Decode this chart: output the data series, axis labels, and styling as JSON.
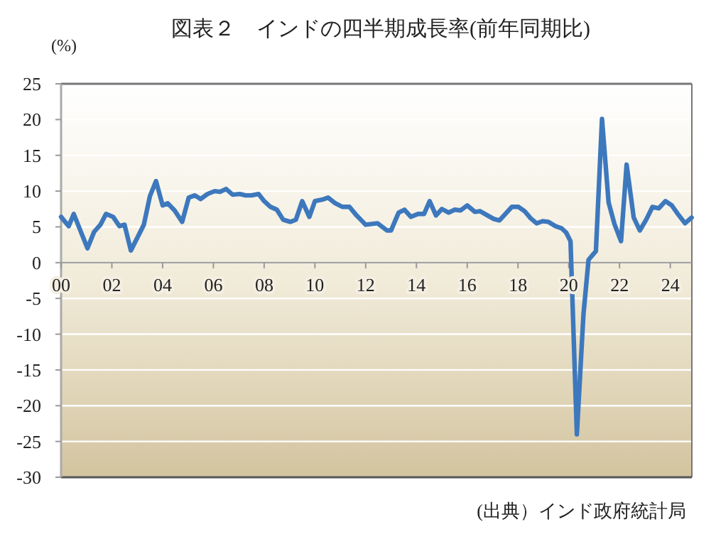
{
  "chart_data": {
    "type": "line",
    "title": "図表２　インドの四半期成長率(前年同期比)",
    "ylabel": "(%)",
    "annotations": [
      "(出典）インド政府統計局"
    ],
    "xlim": [
      2000,
      2024.85
    ],
    "ylim": [
      -30,
      25
    ],
    "xticks": [
      {
        "value": 2000,
        "label": "00"
      },
      {
        "value": 2002,
        "label": "02"
      },
      {
        "value": 2004,
        "label": "04"
      },
      {
        "value": 2006,
        "label": "06"
      },
      {
        "value": 2008,
        "label": "08"
      },
      {
        "value": 2010,
        "label": "10"
      },
      {
        "value": 2012,
        "label": "12"
      },
      {
        "value": 2014,
        "label": "14"
      },
      {
        "value": 2016,
        "label": "16"
      },
      {
        "value": 2018,
        "label": "18"
      },
      {
        "value": 2020,
        "label": "20"
      },
      {
        "value": 2022,
        "label": "22"
      },
      {
        "value": 2024,
        "label": "24"
      }
    ],
    "yticks": [
      -30,
      -25,
      -20,
      -15,
      -10,
      -5,
      0,
      5,
      10,
      15,
      20,
      25
    ],
    "grid": "y",
    "marker": "none",
    "line_style": "solid",
    "series": [
      {
        "color": "#3d78bd",
        "x": [
          2000.0,
          2000.3,
          2000.5,
          2001.04,
          2001.3,
          2001.55,
          2001.77,
          2002.05,
          2002.3,
          2002.5,
          2002.75,
          2003.26,
          2003.5,
          2003.74,
          2004.0,
          2004.2,
          2004.47,
          2004.77,
          2005.03,
          2005.27,
          2005.5,
          2005.77,
          2006.05,
          2006.26,
          2006.5,
          2006.76,
          2007.04,
          2007.26,
          2007.5,
          2007.78,
          2008.0,
          2008.25,
          2008.5,
          2008.75,
          2009.03,
          2009.25,
          2009.5,
          2009.78,
          2010.0,
          2010.28,
          2010.52,
          2010.8,
          2011.08,
          2011.36,
          2011.64,
          2012.0,
          2012.47,
          2012.84,
          2013.0,
          2013.3,
          2013.53,
          2013.78,
          2014.06,
          2014.3,
          2014.52,
          2014.77,
          2015.0,
          2015.27,
          2015.5,
          2015.74,
          2016.0,
          2016.3,
          2016.5,
          2016.8,
          2017.05,
          2017.27,
          2017.5,
          2017.76,
          2018.02,
          2018.26,
          2018.5,
          2018.73,
          2018.97,
          2019.2,
          2019.48,
          2019.72,
          2019.9,
          2020.07,
          2020.32,
          2020.58,
          2020.78,
          2021.07,
          2021.31,
          2021.57,
          2021.8,
          2022.06,
          2022.28,
          2022.56,
          2022.8,
          2023.05,
          2023.3,
          2023.55,
          2023.81,
          2024.06,
          2024.3,
          2024.58,
          2024.84
        ],
        "values": [
          6.4,
          5.1,
          6.8,
          2.0,
          4.3,
          5.3,
          6.8,
          6.4,
          5.1,
          5.3,
          1.7,
          5.3,
          9.3,
          11.4,
          8.0,
          8.3,
          7.3,
          5.7,
          9.1,
          9.4,
          8.9,
          9.6,
          10.0,
          9.9,
          10.3,
          9.5,
          9.6,
          9.4,
          9.4,
          9.6,
          8.6,
          7.8,
          7.4,
          6.0,
          5.7,
          6.0,
          8.6,
          6.4,
          8.6,
          8.8,
          9.1,
          8.3,
          7.8,
          7.8,
          6.6,
          5.3,
          5.5,
          4.5,
          4.5,
          7.0,
          7.4,
          6.4,
          6.8,
          6.8,
          8.6,
          6.6,
          7.5,
          7.0,
          7.4,
          7.3,
          8.0,
          7.1,
          7.2,
          6.6,
          6.1,
          5.9,
          6.8,
          7.8,
          7.8,
          7.2,
          6.2,
          5.5,
          5.8,
          5.7,
          5.1,
          4.8,
          4.2,
          3.0,
          -24.0,
          -7.2,
          0.4,
          1.6,
          20.1,
          8.4,
          5.4,
          3.0,
          13.7,
          6.3,
          4.5,
          6.0,
          7.8,
          7.6,
          8.6,
          8.0,
          6.8,
          5.5,
          6.3
        ]
      }
    ]
  }
}
